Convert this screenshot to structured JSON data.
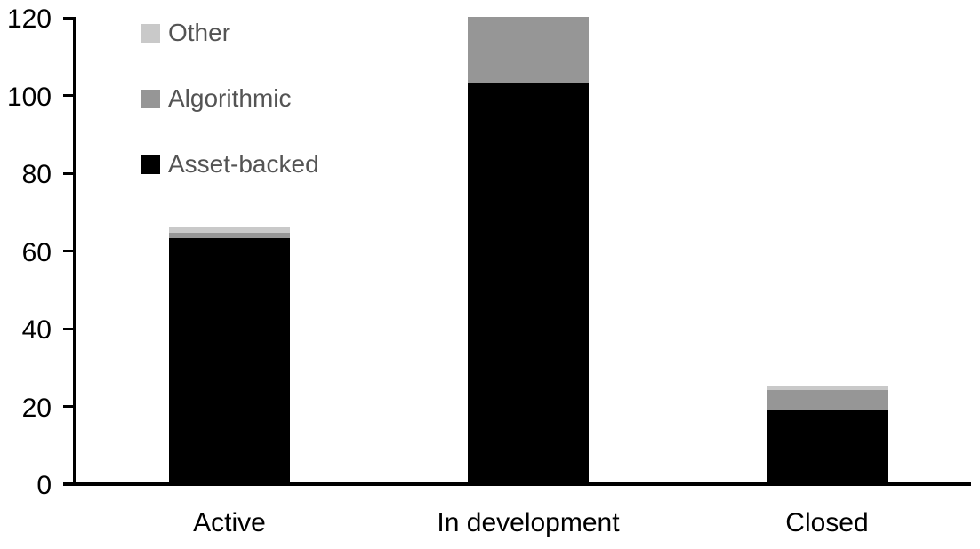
{
  "page": {
    "background": "#ffffff"
  },
  "chart_data": {
    "type": "bar",
    "stacked": true,
    "title": "",
    "xlabel": "",
    "ylabel": "",
    "categories": [
      "Active",
      "In development",
      "Closed"
    ],
    "series": [
      {
        "name": "Asset-backed",
        "color": "#000000",
        "values": [
          63,
          103,
          19
        ]
      },
      {
        "name": "Algorithmic",
        "color": "#969696",
        "values": [
          1.5,
          17,
          5
        ]
      },
      {
        "name": "Other",
        "color": "#c9c9c9",
        "values": [
          1.5,
          0,
          1
        ]
      }
    ],
    "stack_totals": [
      66,
      120,
      25
    ],
    "ylim": [
      0,
      120
    ],
    "yticks": [
      0,
      20,
      40,
      60,
      80,
      100,
      120
    ],
    "grid": false,
    "legend": {
      "position": "top-left",
      "order_top_to_bottom": [
        "Other",
        "Algorithmic",
        "Asset-backed"
      ]
    },
    "colors": {
      "axis": "#000000",
      "tick_label_text": "#000000",
      "category_label_text": "#000000",
      "legend_text": "#545454"
    }
  }
}
